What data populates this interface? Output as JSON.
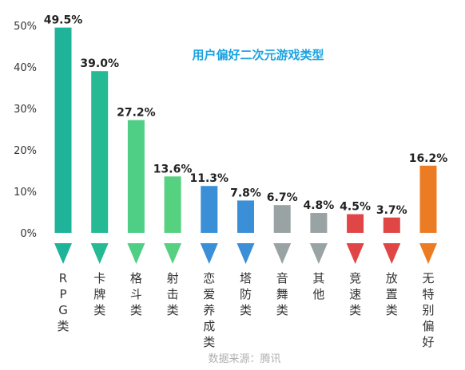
{
  "chart_data": {
    "type": "bar",
    "title": "用户偏好二次元游戏类型",
    "source": "数据来源：腾讯",
    "ylim": [
      0,
      50
    ],
    "yticks": [
      "0%",
      "10%",
      "20%",
      "30%",
      "40%",
      "50%"
    ],
    "ytick_values": [
      0,
      10,
      20,
      30,
      40,
      50
    ],
    "categories": [
      "RPG类",
      "卡牌类",
      "格斗类",
      "射击类",
      "恋爱养成类",
      "塔防类",
      "音舞类",
      "其他",
      "竞速类",
      "放置类",
      "无特别偏好"
    ],
    "values": [
      49.5,
      39.0,
      27.2,
      13.6,
      11.3,
      7.8,
      6.7,
      4.8,
      4.5,
      3.7,
      16.2
    ],
    "labels": [
      "49.5%",
      "39.0%",
      "27.2%",
      "13.6%",
      "11.3%",
      "7.8%",
      "6.7%",
      "4.8%",
      "4.5%",
      "3.7%",
      "16.2%"
    ],
    "colors": [
      "#1fb39a",
      "#25ba93",
      "#4fcf86",
      "#55d17f",
      "#3a8fd6",
      "#3a8fd6",
      "#9aa3a3",
      "#9aa3a3",
      "#e04646",
      "#e04646",
      "#ec7c23"
    ],
    "title_color": "#1aa3e0",
    "grid": false,
    "legend": "none"
  }
}
